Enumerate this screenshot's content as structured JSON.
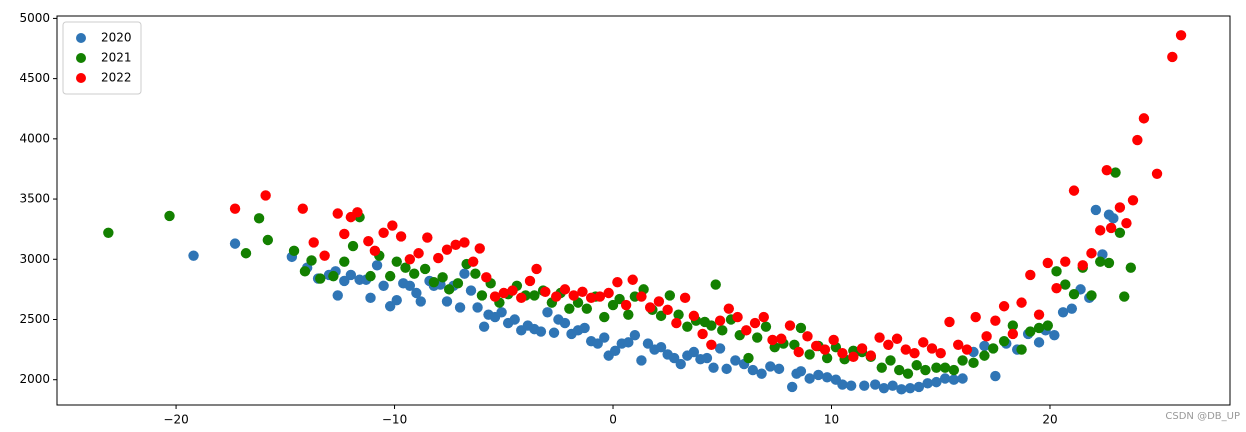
{
  "chart_data": {
    "type": "scatter",
    "xlim": [
      -25.45,
      28.24
    ],
    "ylim": [
      1790,
      5020
    ],
    "xticks": [
      {
        "value": -20,
        "label": "−20"
      },
      {
        "value": -10,
        "label": "−10"
      },
      0,
      10,
      20
    ],
    "yticks": [
      2000,
      2500,
      3000,
      3500,
      4000,
      4500,
      5000
    ],
    "legend": "upper left",
    "watermark": "CSDN @DB_UP",
    "series": [
      {
        "name": "2020",
        "color": "#2f75b5",
        "x": [
          -19.2,
          -17.3,
          -14.7,
          -14,
          -13.5,
          -13,
          -12.7,
          -12.6,
          -12.3,
          -12,
          -11.6,
          -11.3,
          -11.1,
          -10.8,
          -10.5,
          -10.2,
          -9.9,
          -9.6,
          -9.3,
          -9,
          -8.8,
          -8.4,
          -8.2,
          -7.9,
          -7.6,
          -7.3,
          -7,
          -6.8,
          -6.5,
          -6.2,
          -5.9,
          -5.7,
          -5.4,
          -5.1,
          -4.8,
          -4.5,
          -4.2,
          -3.9,
          -3.6,
          -3.3,
          -3,
          -2.7,
          -2.5,
          -2.2,
          -1.9,
          -1.6,
          -1.3,
          -1,
          -0.7,
          -0.4,
          -0.2,
          0.1,
          0.4,
          0.7,
          1,
          1.3,
          1.6,
          1.9,
          2.2,
          2.5,
          2.8,
          3.1,
          3.4,
          3.7,
          4,
          4.3,
          4.6,
          4.9,
          5.2,
          5.6,
          6,
          6.4,
          6.8,
          7.2,
          7.6,
          8.2,
          8.4,
          8.6,
          9,
          9.4,
          9.8,
          10.2,
          10.5,
          10.9,
          11.5,
          12,
          12.4,
          12.8,
          13.2,
          13.6,
          14,
          14.4,
          14.8,
          15.2,
          15.6,
          16,
          16.5,
          17,
          17.5,
          18,
          18.5,
          19,
          19.5,
          19.8,
          20.2,
          20.6,
          21,
          21.4,
          21.8,
          22.1,
          22.4,
          22.7,
          22.9
        ],
        "values": [
          3030,
          3130,
          3020,
          2930,
          2840,
          2870,
          2900,
          2700,
          2820,
          2870,
          2830,
          2830,
          2680,
          2950,
          2780,
          2610,
          2660,
          2800,
          2780,
          2720,
          2650,
          2820,
          2780,
          2790,
          2650,
          2780,
          2600,
          2880,
          2740,
          2600,
          2440,
          2540,
          2520,
          2560,
          2470,
          2500,
          2410,
          2450,
          2420,
          2400,
          2560,
          2390,
          2500,
          2470,
          2380,
          2410,
          2430,
          2320,
          2300,
          2350,
          2200,
          2240,
          2300,
          2310,
          2370,
          2160,
          2300,
          2250,
          2270,
          2210,
          2180,
          2130,
          2200,
          2230,
          2170,
          2180,
          2100,
          2260,
          2090,
          2160,
          2130,
          2080,
          2050,
          2110,
          2090,
          1940,
          2050,
          2070,
          2010,
          2040,
          2020,
          2000,
          1960,
          1950,
          1950,
          1960,
          1930,
          1950,
          1920,
          1930,
          1940,
          1970,
          1980,
          2010,
          2000,
          2010,
          2230,
          2280,
          2030,
          2300,
          2250,
          2380,
          2310,
          2410,
          2370,
          2560,
          2590,
          2750,
          2680,
          3410,
          3040,
          3370,
          3340
        ]
      },
      {
        "name": "2021",
        "color": "#138000",
        "x": [
          -23.1,
          -20.3,
          -16.8,
          -16.2,
          -15.8,
          -14.6,
          -14.1,
          -13.8,
          -13.4,
          -12.8,
          -12.3,
          -11.9,
          -11.6,
          -11.1,
          -10.7,
          -10.2,
          -9.9,
          -9.5,
          -9.1,
          -8.6,
          -8.2,
          -7.8,
          -7.5,
          -7.1,
          -6.7,
          -6.3,
          -6,
          -5.6,
          -5.2,
          -4.8,
          -4.4,
          -4,
          -3.6,
          -3.2,
          -2.8,
          -2.4,
          -2,
          -1.6,
          -1.2,
          -0.8,
          -0.4,
          0,
          0.3,
          0.7,
          1,
          1.4,
          1.8,
          2.2,
          2.6,
          3,
          3.4,
          3.8,
          4.2,
          4.5,
          4.7,
          5,
          5.4,
          5.8,
          6.2,
          6.6,
          7,
          7.4,
          7.8,
          8.3,
          8.6,
          9,
          9.4,
          9.8,
          10.2,
          10.6,
          11,
          11.4,
          11.8,
          12.3,
          12.7,
          13.1,
          13.5,
          13.9,
          14.3,
          14.8,
          15.2,
          15.6,
          16,
          16.5,
          17,
          17.4,
          17.9,
          18.3,
          18.7,
          19.1,
          19.5,
          19.9,
          20.3,
          20.7,
          21.1,
          21.5,
          21.9,
          22.3,
          22.7,
          23,
          23.2,
          23.4,
          23.7
        ],
        "values": [
          3220,
          3360,
          3050,
          3340,
          3160,
          3070,
          2900,
          2990,
          2840,
          2860,
          2980,
          3110,
          3350,
          2860,
          3030,
          2860,
          2980,
          2930,
          2880,
          2920,
          2810,
          2850,
          2750,
          2800,
          2960,
          2880,
          2700,
          2800,
          2640,
          2710,
          2780,
          2700,
          2700,
          2740,
          2640,
          2720,
          2590,
          2640,
          2590,
          2690,
          2520,
          2620,
          2670,
          2540,
          2690,
          2750,
          2580,
          2530,
          2700,
          2540,
          2440,
          2490,
          2480,
          2450,
          2790,
          2410,
          2500,
          2370,
          2180,
          2350,
          2440,
          2270,
          2300,
          2290,
          2430,
          2210,
          2280,
          2180,
          2270,
          2170,
          2240,
          2230,
          2190,
          2100,
          2160,
          2080,
          2050,
          2120,
          2080,
          2100,
          2100,
          2080,
          2160,
          2140,
          2200,
          2260,
          2320,
          2450,
          2250,
          2400,
          2430,
          2450,
          2900,
          2790,
          2710,
          2930,
          2700,
          2980,
          2970,
          3720,
          3220,
          2690,
          2930
        ]
      },
      {
        "name": "2022",
        "color": "#ff0000",
        "x": [
          -17.3,
          -15.9,
          -14.2,
          -13.7,
          -13.2,
          -12.6,
          -12.3,
          -12,
          -11.7,
          -11.2,
          -10.9,
          -10.5,
          -10.1,
          -9.7,
          -9.3,
          -8.9,
          -8.5,
          -8,
          -7.6,
          -7.2,
          -6.8,
          -6.4,
          -6.1,
          -5.8,
          -5.4,
          -5,
          -4.6,
          -4.2,
          -3.8,
          -3.5,
          -3.1,
          -2.6,
          -2.2,
          -1.8,
          -1.4,
          -1,
          -0.6,
          -0.2,
          0.2,
          0.6,
          0.9,
          1.3,
          1.7,
          2.1,
          2.5,
          2.9,
          3.3,
          3.7,
          4.1,
          4.5,
          4.9,
          5.3,
          5.7,
          6.1,
          6.5,
          6.9,
          7.3,
          7.7,
          8.1,
          8.5,
          8.9,
          9.3,
          9.7,
          10.1,
          10.5,
          11,
          11.4,
          11.8,
          12.2,
          12.6,
          13,
          13.4,
          13.8,
          14.2,
          14.6,
          15,
          15.4,
          15.8,
          16.2,
          16.6,
          17.1,
          17.5,
          17.9,
          18.3,
          18.7,
          19.1,
          19.5,
          19.9,
          20.3,
          20.7,
          21.1,
          21.5,
          21.9,
          22.3,
          22.6,
          22.8,
          23.2,
          23.5,
          23.8,
          24,
          24.3,
          24.9,
          25.6,
          26
        ],
        "values": [
          3420,
          3530,
          3420,
          3140,
          3030,
          3380,
          3210,
          3350,
          3390,
          3150,
          3070,
          3220,
          3280,
          3190,
          3000,
          3050,
          3180,
          3010,
          3080,
          3120,
          3140,
          2980,
          3090,
          2850,
          2690,
          2720,
          2740,
          2680,
          2820,
          2920,
          2730,
          2690,
          2750,
          2700,
          2730,
          2680,
          2690,
          2720,
          2810,
          2620,
          2830,
          2690,
          2600,
          2650,
          2580,
          2470,
          2680,
          2530,
          2380,
          2290,
          2490,
          2590,
          2520,
          2410,
          2470,
          2520,
          2330,
          2340,
          2450,
          2230,
          2360,
          2280,
          2250,
          2330,
          2220,
          2190,
          2260,
          2200,
          2350,
          2290,
          2340,
          2250,
          2220,
          2310,
          2260,
          2220,
          2480,
          2290,
          2250,
          2520,
          2360,
          2490,
          2610,
          2380,
          2640,
          2870,
          2540,
          2970,
          2760,
          2980,
          3570,
          2950,
          3050,
          3240,
          3740,
          3260,
          3430,
          3300,
          3490,
          3990,
          4170,
          3710,
          4680,
          4860
        ]
      }
    ]
  }
}
